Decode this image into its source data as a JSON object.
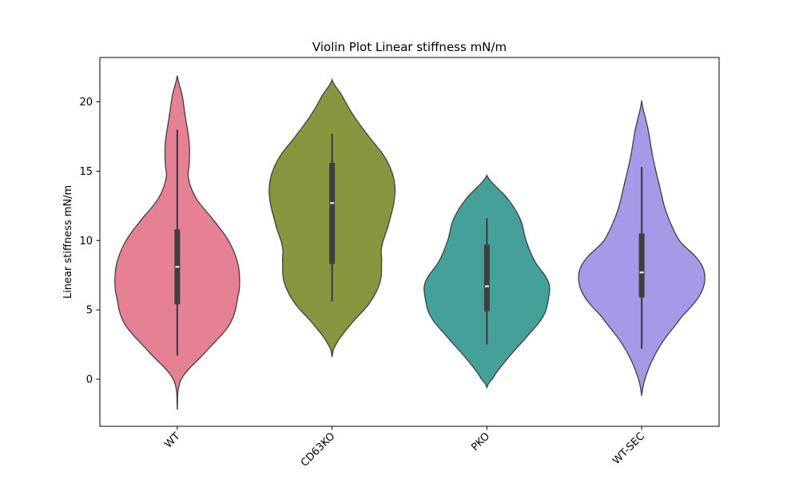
{
  "chart_data": {
    "type": "violin",
    "title": "Violin Plot Linear stiffness mN/m",
    "xlabel": "",
    "ylabel": "Linear stiffness mN/m",
    "ylim": [
      -3.4,
      23.2
    ],
    "yticks": [
      0,
      5,
      10,
      15,
      20
    ],
    "grid": false,
    "categories": [
      "WT",
      "CD63KO",
      "PKO",
      "WT-SEC"
    ],
    "colors": [
      "#e68193",
      "#8a963f",
      "#45a099",
      "#a898e8"
    ],
    "violins": [
      {
        "category": "WT",
        "extent": [
          -2.2,
          21.9
        ],
        "box": {
          "whisker_low": 1.7,
          "q1": 5.4,
          "median": 8.1,
          "q3": 10.8,
          "whisker_high": 18.0
        },
        "profile": [
          [
            -2.2,
            0.0
          ],
          [
            0.0,
            5.0
          ],
          [
            2.0,
            36.0
          ],
          [
            4.0,
            66.0
          ],
          [
            6.0,
            76.0
          ],
          [
            7.2,
            78.0
          ],
          [
            8.5,
            75.0
          ],
          [
            10.0,
            64.0
          ],
          [
            11.5,
            45.0
          ],
          [
            13.0,
            24.0
          ],
          [
            14.5,
            14.0
          ],
          [
            15.5,
            15.0
          ],
          [
            17.0,
            15.0
          ],
          [
            19.0,
            10.0
          ],
          [
            20.5,
            6.0
          ],
          [
            21.9,
            0.0
          ]
        ]
      },
      {
        "category": "CD63KO",
        "extent": [
          1.6,
          21.6
        ],
        "box": {
          "whisker_low": 5.6,
          "q1": 8.3,
          "median": 12.7,
          "q3": 15.6,
          "whisker_high": 17.7
        },
        "profile": [
          [
            1.6,
            0.0
          ],
          [
            2.5,
            5.0
          ],
          [
            4.0,
            24.0
          ],
          [
            5.5,
            47.0
          ],
          [
            7.0,
            60.0
          ],
          [
            8.5,
            62.0
          ],
          [
            9.5,
            62.0
          ],
          [
            11.0,
            70.0
          ],
          [
            13.0,
            78.0
          ],
          [
            14.5,
            77.0
          ],
          [
            16.0,
            66.0
          ],
          [
            17.5,
            46.0
          ],
          [
            19.0,
            27.0
          ],
          [
            20.5,
            12.0
          ],
          [
            21.6,
            0.0
          ]
        ]
      },
      {
        "category": "PKO",
        "extent": [
          -0.6,
          14.7
        ],
        "box": {
          "whisker_low": 2.5,
          "q1": 4.9,
          "median": 6.7,
          "q3": 9.7,
          "whisker_high": 11.6
        },
        "profile": [
          [
            -0.6,
            0.0
          ],
          [
            0.0,
            7.0
          ],
          [
            1.5,
            26.0
          ],
          [
            3.0,
            49.0
          ],
          [
            4.5,
            70.0
          ],
          [
            5.8,
            77.0
          ],
          [
            7.0,
            77.0
          ],
          [
            8.5,
            60.0
          ],
          [
            10.0,
            49.0
          ],
          [
            11.5,
            42.0
          ],
          [
            13.0,
            26.0
          ],
          [
            14.7,
            0.0
          ]
        ]
      },
      {
        "category": "WT-SEC",
        "extent": [
          -1.2,
          20.1
        ],
        "box": {
          "whisker_low": 2.2,
          "q1": 5.9,
          "median": 7.7,
          "q3": 10.5,
          "whisker_high": 15.3
        },
        "profile": [
          [
            -1.2,
            0.0
          ],
          [
            0.5,
            7.0
          ],
          [
            2.5,
            24.0
          ],
          [
            4.5,
            50.0
          ],
          [
            6.0,
            72.0
          ],
          [
            7.3,
            79.0
          ],
          [
            8.5,
            72.0
          ],
          [
            10.0,
            47.0
          ],
          [
            12.0,
            31.0
          ],
          [
            14.0,
            22.0
          ],
          [
            16.0,
            14.0
          ],
          [
            18.0,
            8.0
          ],
          [
            20.1,
            0.0
          ]
        ]
      }
    ]
  }
}
